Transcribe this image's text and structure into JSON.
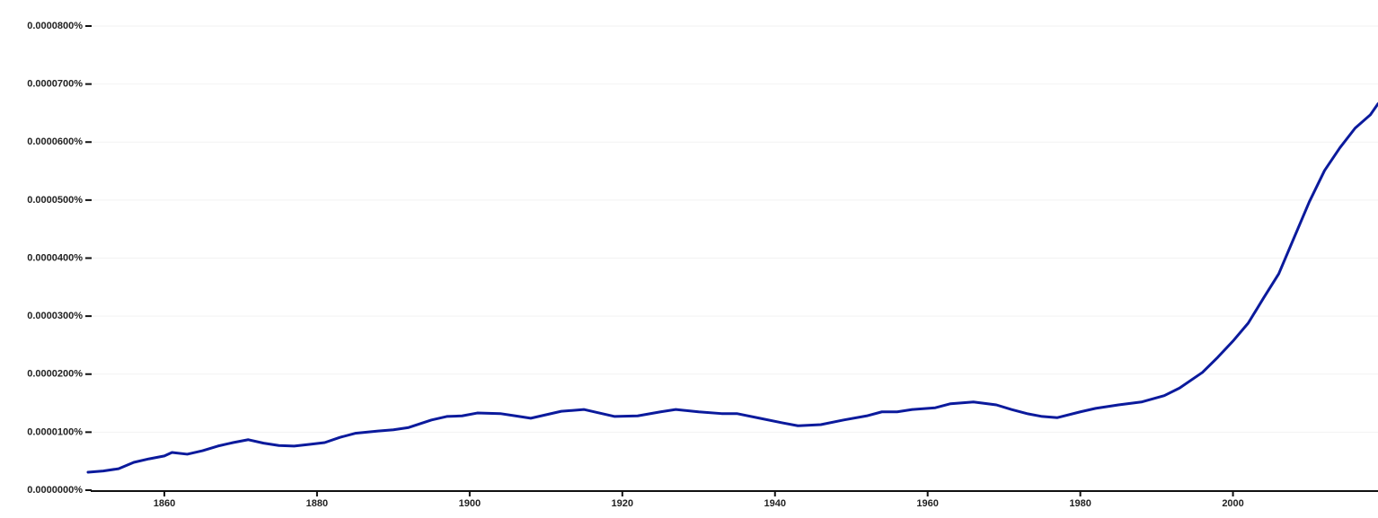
{
  "chart_data": {
    "type": "line",
    "color": "#0b1a9c",
    "grid": true,
    "x": [
      1850,
      1852,
      1854,
      1856,
      1858,
      1860,
      1861,
      1863,
      1865,
      1867,
      1869,
      1871,
      1873,
      1875,
      1877,
      1879,
      1881,
      1883,
      1885,
      1888,
      1890,
      1892,
      1895,
      1897,
      1899,
      1901,
      1904,
      1906,
      1908,
      1910,
      1912,
      1915,
      1917,
      1919,
      1922,
      1925,
      1927,
      1930,
      1933,
      1935,
      1938,
      1941,
      1943,
      1946,
      1949,
      1952,
      1954,
      1956,
      1958,
      1961,
      1963,
      1966,
      1969,
      1971,
      1973,
      1975,
      1977,
      1980,
      1982,
      1985,
      1988,
      1991,
      1993,
      1996,
      1998,
      2000,
      2002,
      2004,
      2006,
      2008,
      2010,
      2012,
      2014,
      2016,
      2018,
      2019
    ],
    "values": [
      3.1e-06,
      3.3e-06,
      3.7e-06,
      4.8e-06,
      5.4e-06,
      5.9e-06,
      6.5e-06,
      6.2e-06,
      6.8e-06,
      7.6e-06,
      8.2e-06,
      8.7e-06,
      8.1e-06,
      7.7e-06,
      7.6e-06,
      7.9e-06,
      8.2e-06,
      9.1e-06,
      9.8e-06,
      1.02e-05,
      1.04e-05,
      1.08e-05,
      1.21e-05,
      1.27e-05,
      1.28e-05,
      1.33e-05,
      1.32e-05,
      1.28e-05,
      1.24e-05,
      1.3e-05,
      1.36e-05,
      1.39e-05,
      1.33e-05,
      1.27e-05,
      1.28e-05,
      1.35e-05,
      1.39e-05,
      1.35e-05,
      1.32e-05,
      1.32e-05,
      1.24e-05,
      1.16e-05,
      1.11e-05,
      1.13e-05,
      1.21e-05,
      1.28e-05,
      1.35e-05,
      1.35e-05,
      1.39e-05,
      1.42e-05,
      1.49e-05,
      1.52e-05,
      1.47e-05,
      1.39e-05,
      1.32e-05,
      1.27e-05,
      1.25e-05,
      1.35e-05,
      1.41e-05,
      1.47e-05,
      1.52e-05,
      1.63e-05,
      1.76e-05,
      2.03e-05,
      2.29e-05,
      2.57e-05,
      2.88e-05,
      3.31e-05,
      3.73e-05,
      4.35e-05,
      4.97e-05,
      5.51e-05,
      5.9e-05,
      6.24e-05,
      6.47e-05,
      6.66e-05
    ],
    "xlim": [
      1850,
      2019
    ],
    "xticks": [
      1860,
      1880,
      1900,
      1920,
      1940,
      1960,
      1980,
      2000
    ],
    "ylim": [
      0,
      8e-05
    ],
    "yticks": [
      {
        "value": 0,
        "label": "0.0000000%"
      },
      {
        "value": 1e-05,
        "label": "0.0000100%"
      },
      {
        "value": 2e-05,
        "label": "0.0000200%"
      },
      {
        "value": 3e-05,
        "label": "0.0000300%"
      },
      {
        "value": 4e-05,
        "label": "0.0000400%"
      },
      {
        "value": 5e-05,
        "label": "0.0000500%"
      },
      {
        "value": 6e-05,
        "label": "0.0000600%"
      },
      {
        "value": 7e-05,
        "label": "0.0000700%"
      },
      {
        "value": 8e-05,
        "label": "0.0000800%"
      }
    ]
  }
}
